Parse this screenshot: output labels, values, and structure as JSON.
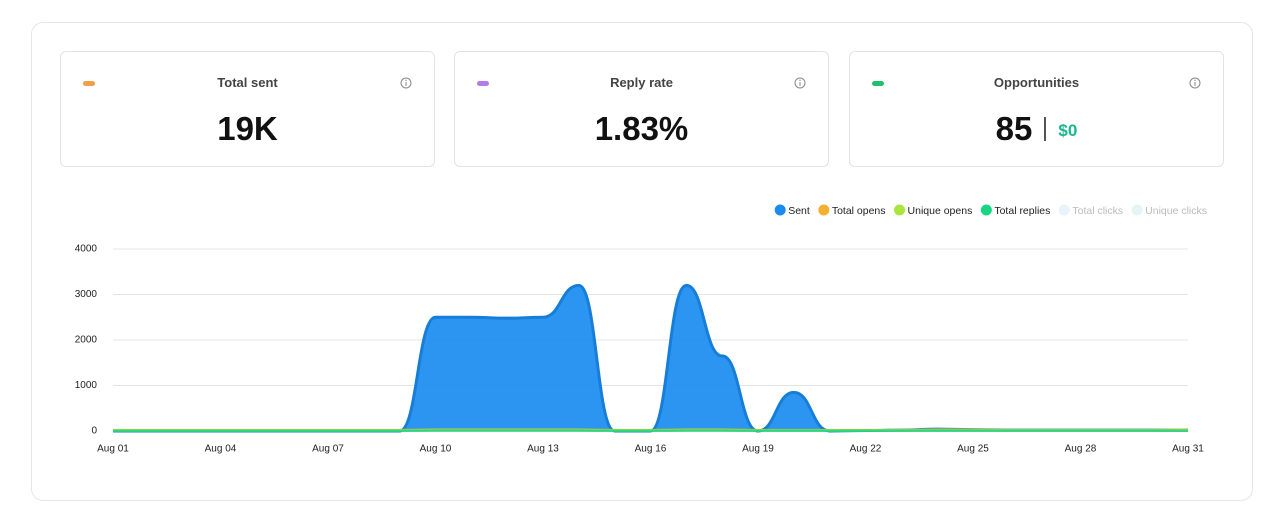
{
  "cards": [
    {
      "title": "Total sent",
      "value": "19K",
      "color": "#f0a04b"
    },
    {
      "title": "Reply rate",
      "value": "1.83%",
      "color": "#b57be6"
    },
    {
      "title": "Opportunities",
      "value": "85",
      "sub": "$0",
      "color": "#22c06b"
    }
  ],
  "chart_data": {
    "type": "area",
    "categories": [
      "Aug 01",
      null,
      null,
      "Aug 04",
      null,
      null,
      "Aug 07",
      null,
      null,
      "Aug 10",
      null,
      null,
      "Aug 13",
      null,
      null,
      "Aug 16",
      null,
      null,
      "Aug 19",
      null,
      null,
      "Aug 22",
      null,
      null,
      "Aug 25",
      null,
      null,
      "Aug 28",
      null,
      null,
      "Aug 31"
    ],
    "series": [
      {
        "name": "Sent",
        "color": "#1a8cf0",
        "values": [
          0,
          0,
          0,
          0,
          0,
          0,
          0,
          0,
          0,
          2500,
          2500,
          2480,
          2500,
          3200,
          0,
          0,
          3200,
          1650,
          0,
          850,
          0,
          10,
          20,
          40,
          30,
          20,
          20,
          20,
          20,
          20,
          20
        ]
      },
      {
        "name": "Total opens",
        "color": "#f5b032",
        "values": [
          20,
          20,
          20,
          20,
          20,
          20,
          20,
          20,
          20,
          30,
          30,
          30,
          30,
          30,
          20,
          20,
          30,
          30,
          20,
          20,
          20,
          20,
          20,
          30,
          30,
          20,
          20,
          20,
          20,
          20,
          30
        ]
      },
      {
        "name": "Unique opens",
        "color": "#a9e53d",
        "values": [
          15,
          15,
          15,
          15,
          15,
          15,
          15,
          15,
          15,
          20,
          20,
          20,
          20,
          20,
          15,
          15,
          20,
          20,
          15,
          15,
          15,
          15,
          15,
          20,
          20,
          15,
          15,
          15,
          15,
          15,
          20
        ]
      },
      {
        "name": "Total replies",
        "color": "#18d483",
        "values": [
          5,
          5,
          5,
          5,
          5,
          5,
          5,
          5,
          5,
          8,
          8,
          8,
          8,
          8,
          5,
          5,
          8,
          8,
          5,
          5,
          5,
          5,
          5,
          5,
          5,
          5,
          5,
          5,
          5,
          5,
          5
        ]
      },
      {
        "name": "Total clicks",
        "color": "#e9f3fa",
        "hidden": true
      },
      {
        "name": "Unique clicks",
        "color": "#e5f5f5",
        "hidden": true
      }
    ],
    "ylim": [
      0,
      4000
    ],
    "yticks": [
      0,
      1000,
      2000,
      3000,
      4000
    ],
    "grid": true
  }
}
